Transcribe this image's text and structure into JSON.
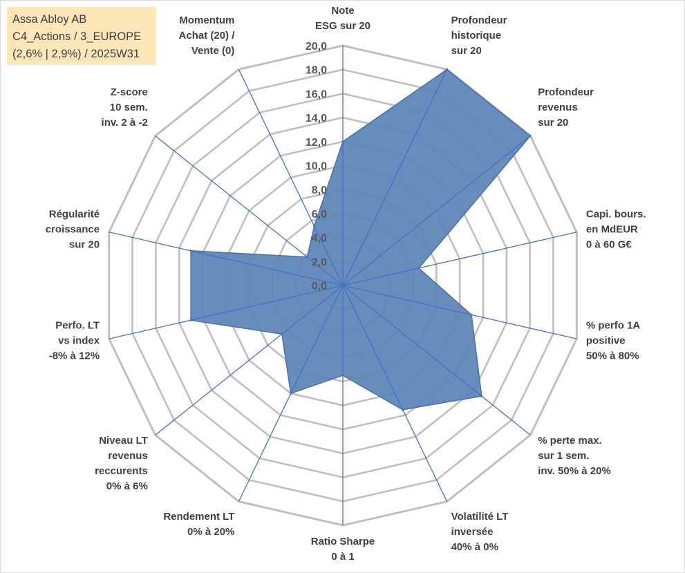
{
  "info": {
    "line1": "Assa Abloy AB",
    "line2": "C4_Actions / 3_EUROPE",
    "line3": "(2,6% | 2,9%) / 2025W31"
  },
  "colors": {
    "grid": "#bfbfbf",
    "spoke": "#4472c4",
    "fill": "#5b84b8",
    "fill_stroke": "#4a70a8",
    "info_bg": "#fde6b8"
  },
  "chart_data": {
    "type": "radar",
    "rmin": 0,
    "rmax": 20,
    "tick_step": 2,
    "tick_labels": [
      "0,0",
      "2,0",
      "4,0",
      "6,0",
      "8,0",
      "10,0",
      "12,0",
      "14,0",
      "16,0",
      "18,0",
      "20,0"
    ],
    "categories": [
      [
        "Note",
        "ESG sur 20"
      ],
      [
        "Profondeur",
        "historique",
        "sur 20"
      ],
      [
        "Profondeur",
        "revenus",
        "sur 20"
      ],
      [
        "Capi. bours.",
        "en MdEUR",
        "0 à 60 G€"
      ],
      [
        "% perfo 1A",
        "positive",
        "50% à 80%"
      ],
      [
        "% perte max.",
        "sur 1 sem.",
        "inv. 50% à 20%"
      ],
      [
        "Volatilité LT",
        "inversée",
        "40% à 0%"
      ],
      [
        "Ratio Sharpe",
        "0 à 1"
      ],
      [
        "Rendement LT",
        "0% à 20%"
      ],
      [
        "Niveau LT",
        "revenus",
        "reccurents",
        "0% à 6%"
      ],
      [
        "Perfo. LT",
        "vs index",
        "-8% à 12%"
      ],
      [
        "Régularité",
        "croissance",
        "sur 20"
      ],
      [
        "Z-score",
        "10 sem.",
        "inv. 2 à -2"
      ],
      [
        "Momentum",
        "Achat (20) /",
        "Vente (0)"
      ]
    ],
    "series": [
      {
        "values": [
          12.0,
          20.0,
          20.0,
          6.5,
          11.0,
          14.8,
          11.5,
          7.5,
          10.0,
          6.5,
          13.0,
          13.0,
          3.8,
          5.5
        ]
      }
    ],
    "grid": true,
    "legend": "none"
  }
}
